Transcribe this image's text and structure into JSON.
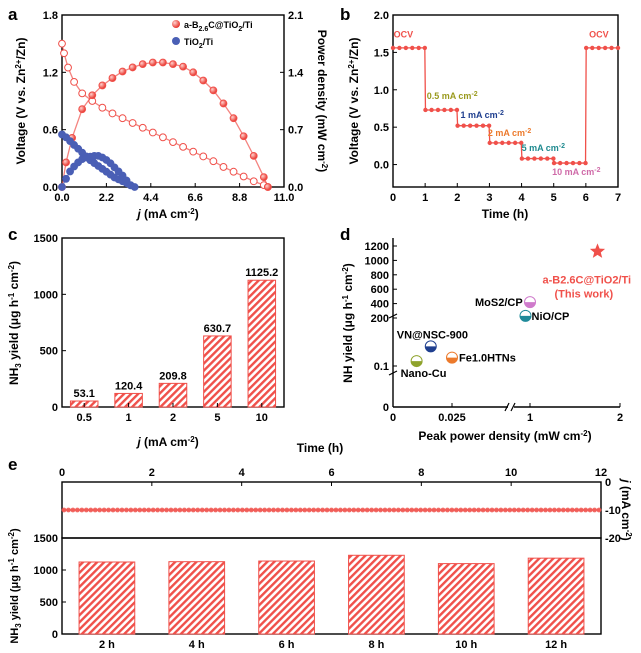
{
  "chart_data": [
    {
      "id": "a",
      "panel_label": "a",
      "type": "line",
      "xlabel_italic": "j",
      "xlabel_unit": " (mA cm",
      "xlabel_sup": "-2",
      "xlabel_end": ")",
      "ylabel_left": "Voltage (V vs. Zn",
      "ylabel_left_sup": "2+",
      "ylabel_left_end": "/Zn)",
      "ylabel_right": "Power density  (mW cm",
      "ylabel_right_sup": "-2",
      "ylabel_right_end": ")",
      "xlim": [
        0,
        11
      ],
      "ylim_left": [
        0,
        1.8
      ],
      "ylim_right": [
        0,
        2.1
      ],
      "xticks": [
        "0.0",
        "2.2",
        "4.4",
        "6.6",
        "8.8",
        "11.0"
      ],
      "yticks_left": [
        "0.0",
        "0.6",
        "1.2",
        "1.8"
      ],
      "yticks_right": [
        "0.0",
        "0.7",
        "1.4",
        "2.1"
      ],
      "legend": [
        "a-B2.6C@TiO2/Ti",
        "TiO2/Ti"
      ],
      "series": [
        {
          "name": "a-B2.6C@TiO2/Ti",
          "kind": "voltage",
          "color": "#f0504a",
          "x": [
            0,
            0.1,
            0.3,
            0.6,
            1.0,
            1.5,
            2.0,
            2.5,
            3.0,
            3.5,
            4.0,
            4.5,
            5.0,
            5.5,
            6.0,
            6.5,
            7.0,
            7.5,
            8.0,
            8.5,
            9.0,
            9.5,
            10.0,
            10.2
          ],
          "y": [
            1.5,
            1.4,
            1.25,
            1.1,
            0.98,
            0.9,
            0.83,
            0.77,
            0.72,
            0.67,
            0.62,
            0.57,
            0.52,
            0.47,
            0.42,
            0.37,
            0.32,
            0.27,
            0.21,
            0.16,
            0.11,
            0.06,
            0.02,
            0.0
          ]
        },
        {
          "name": "a-B2.6C@TiO2/Ti",
          "kind": "power",
          "color": "#f0504a",
          "x": [
            0,
            0.2,
            0.5,
            1.0,
            1.5,
            2.0,
            2.5,
            3.0,
            3.5,
            4.0,
            4.5,
            5.0,
            5.5,
            6.0,
            6.5,
            7.0,
            7.5,
            8.0,
            8.5,
            9.0,
            9.5,
            10.0,
            10.2
          ],
          "y": [
            0,
            0.3,
            0.6,
            0.95,
            1.12,
            1.24,
            1.33,
            1.41,
            1.46,
            1.5,
            1.52,
            1.52,
            1.5,
            1.47,
            1.4,
            1.3,
            1.18,
            1.02,
            0.84,
            0.62,
            0.38,
            0.12,
            0.0
          ]
        },
        {
          "name": "TiO2/Ti",
          "kind": "voltage",
          "color": "#4a5fb5",
          "x": [
            0,
            0.2,
            0.4,
            0.6,
            0.8,
            1.0,
            1.2,
            1.4,
            1.6,
            1.8,
            2.0,
            2.2,
            2.4,
            2.6,
            2.8,
            3.0,
            3.2,
            3.4,
            3.6
          ],
          "y": [
            0.55,
            0.52,
            0.48,
            0.44,
            0.4,
            0.36,
            0.32,
            0.28,
            0.25,
            0.22,
            0.19,
            0.16,
            0.13,
            0.1,
            0.08,
            0.06,
            0.04,
            0.02,
            0.0
          ]
        },
        {
          "name": "TiO2/Ti",
          "kind": "power",
          "color": "#4a5fb5",
          "x": [
            0,
            0.2,
            0.4,
            0.6,
            0.8,
            1.0,
            1.2,
            1.4,
            1.6,
            1.8,
            2.0,
            2.2,
            2.4,
            2.6,
            2.8,
            3.0,
            3.2,
            3.4
          ],
          "y": [
            0,
            0.1,
            0.19,
            0.25,
            0.3,
            0.34,
            0.36,
            0.37,
            0.38,
            0.38,
            0.36,
            0.33,
            0.29,
            0.24,
            0.19,
            0.14,
            0.08,
            0.02
          ]
        }
      ]
    },
    {
      "id": "b",
      "panel_label": "b",
      "type": "line",
      "xlabel": "Time (h)",
      "ylabel": "Voltage (V vs. Zn",
      "ylabel_sup": "2+",
      "ylabel_end": "/Zn)",
      "xlim": [
        0,
        7
      ],
      "ylim": [
        -0.3,
        2.0
      ],
      "xticks": [
        "0",
        "1",
        "2",
        "3",
        "4",
        "5",
        "6",
        "7"
      ],
      "yticks": [
        "0.0",
        "0.5",
        "1.0",
        "1.5",
        "2.0"
      ],
      "x": [
        0,
        0.2,
        0.4,
        0.6,
        0.8,
        0.99,
        1.01,
        1.2,
        1.4,
        1.6,
        1.8,
        1.99,
        2.01,
        2.2,
        2.4,
        2.6,
        2.8,
        2.99,
        3.01,
        3.2,
        3.4,
        3.6,
        3.8,
        3.99,
        4.01,
        4.2,
        4.4,
        4.6,
        4.8,
        4.99,
        5.01,
        5.2,
        5.4,
        5.6,
        5.8,
        5.99,
        6.01,
        6.2,
        6.4,
        6.6,
        6.8,
        7.0
      ],
      "y": [
        1.56,
        1.56,
        1.56,
        1.56,
        1.56,
        1.56,
        0.73,
        0.73,
        0.73,
        0.73,
        0.73,
        0.73,
        0.52,
        0.52,
        0.52,
        0.52,
        0.52,
        0.52,
        0.29,
        0.29,
        0.29,
        0.29,
        0.29,
        0.29,
        0.08,
        0.08,
        0.08,
        0.08,
        0.08,
        0.08,
        0.02,
        0.02,
        0.02,
        0.02,
        0.02,
        0.02,
        1.56,
        1.56,
        1.56,
        1.56,
        1.56,
        1.56
      ],
      "annotations": [
        {
          "text": "OCV",
          "x": 0.02,
          "y": 1.7,
          "color": "#f0504a"
        },
        {
          "text": "OCV",
          "x": 6.1,
          "y": 1.7,
          "color": "#f0504a"
        },
        {
          "text": "0.5 mA cm",
          "sup": "-2",
          "x": 1.05,
          "y": 0.88,
          "color": "#9a9a1e"
        },
        {
          "text": "1 mA cm",
          "sup": "-2",
          "x": 2.1,
          "y": 0.62,
          "color": "#1f3f8f"
        },
        {
          "text": "2 mA cm",
          "sup": "-2",
          "x": 2.95,
          "y": 0.38,
          "color": "#ec7a2c"
        },
        {
          "text": "5 mA cm",
          "sup": "-2",
          "x": 4.0,
          "y": 0.18,
          "color": "#1f8a8f"
        },
        {
          "text": "10 mA cm",
          "sup": "-2",
          "x": 4.95,
          "y": -0.14,
          "color": "#cf6aa8"
        }
      ]
    },
    {
      "id": "c",
      "panel_label": "c",
      "type": "bar",
      "xlabel_italic": "j",
      "xlabel_unit": " (mA cm",
      "xlabel_sup": "-2",
      "xlabel_end": ")",
      "ylabel": "NH",
      "ylabel_sub": "3",
      "ylabel_mid": " yield (μg h",
      "ylabel_sup1": "-1",
      "ylabel_mid2": " cm",
      "ylabel_sup2": "-2",
      "ylabel_end": ")",
      "categories": [
        "0.5",
        "1",
        "2",
        "5",
        "10"
      ],
      "values": [
        53.1,
        120.4,
        209.8,
        630.7,
        1125.2
      ],
      "value_labels": [
        "53.1",
        "120.4",
        "209.8",
        "630.7",
        "1125.2"
      ],
      "ylim": [
        0,
        1500
      ],
      "yticks": [
        "0",
        "500",
        "1000",
        "1500"
      ],
      "color": "#f0504a"
    },
    {
      "id": "d",
      "panel_label": "d",
      "type": "scatter",
      "xlabel": "Peak power density (mW cm",
      "xlabel_sup": "-2",
      "xlabel_end": ")",
      "ylabel": "NH yield (μg h",
      "ylabel_sup1": "-1",
      "ylabel_mid": " cm",
      "ylabel_sup2": "-2",
      "ylabel_end": ")",
      "xticks": [
        "0",
        "0.025",
        "1",
        "2"
      ],
      "yticks": [
        "0",
        "0.1",
        "200",
        "400",
        "600",
        "800",
        "1000",
        "1200"
      ],
      "axis_break": true,
      "points": [
        {
          "label": "a-B2.6C@TiO2/Ti",
          "note": "(This work)",
          "x": 1.75,
          "y": 1125.2,
          "marker": "star",
          "color": "#f0504a"
        },
        {
          "label": "MoS2/CP",
          "x": 1.0,
          "y": 420,
          "marker": "circle",
          "color": "#cf7acb"
        },
        {
          "label": "NiO/CP",
          "x": 0.95,
          "y": 230,
          "marker": "circle",
          "color": "#1f8a9a"
        },
        {
          "label": "VN@NSC-900",
          "x": 0.016,
          "y": 0.5,
          "marker": "circle",
          "color": "#1f3f8f"
        },
        {
          "label": "Fe1.0HTNs",
          "x": 0.025,
          "y": 0.2,
          "marker": "circle",
          "color": "#ec7a2c"
        },
        {
          "label": "Nano-Cu",
          "x": 0.01,
          "y": 0.15,
          "marker": "circle",
          "color": "#8fa32c"
        }
      ]
    },
    {
      "id": "e",
      "panel_label": "e",
      "type": "bar",
      "xlabel_top": "Time (h)",
      "xticks_top": [
        "0",
        "2",
        "4",
        "6",
        "8",
        "10",
        "12"
      ],
      "ylabel_right_italic": "j",
      "ylabel_right_unit": " (mA cm",
      "ylabel_right_sup": "-2",
      "ylabel_right_end": ")",
      "yticks_right": [
        "0",
        "-10",
        "-20"
      ],
      "ylabel": "NH",
      "ylabel_sub": "3",
      "ylabel_mid": " yield (μg h",
      "ylabel_sup1": "-1",
      "ylabel_mid2": " cm",
      "ylabel_sup2": "-2",
      "ylabel_end": ")",
      "yticks": [
        "0",
        "500",
        "1000",
        "1500"
      ],
      "ylim": [
        0,
        1500
      ],
      "current_density": -10,
      "categories": [
        "2 h",
        "4 h",
        "6 h",
        "8 h",
        "10 h",
        "12 h"
      ],
      "values": [
        1125,
        1130,
        1140,
        1230,
        1100,
        1185
      ],
      "color": "#f0504a"
    }
  ]
}
